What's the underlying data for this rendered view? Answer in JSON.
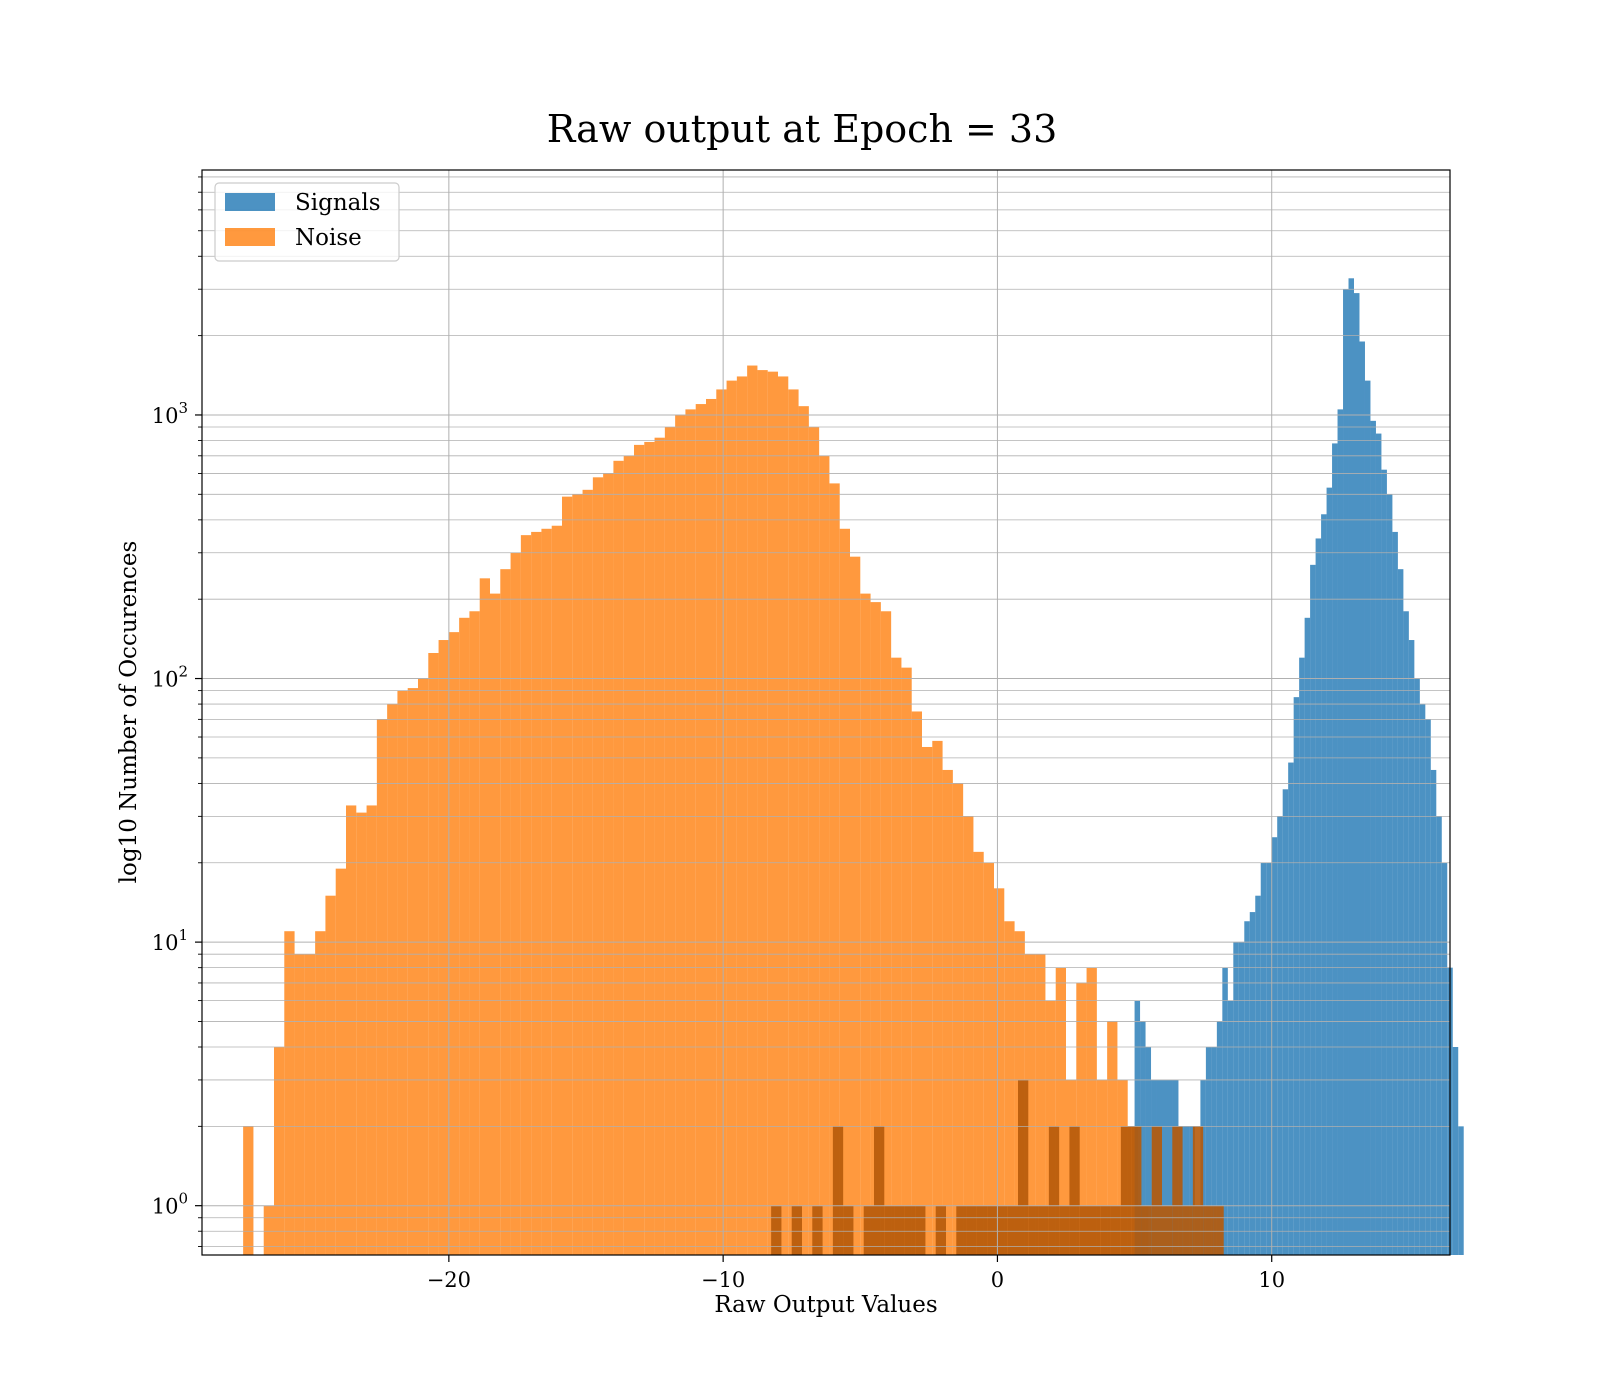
{
  "chart_data": {
    "type": "bar",
    "title": "Raw output at Epoch = 33",
    "xlabel": "Raw Output Values",
    "ylabel": "log10 Number of Occurences",
    "y_scale": "log",
    "xlim": [
      -29.0,
      16.5
    ],
    "ylim": [
      0.65,
      8500
    ],
    "grid": true,
    "legend_position": "upper-left",
    "x_ticks": [
      {
        "value": -20,
        "label": "−20"
      },
      {
        "value": -10,
        "label": "−10"
      },
      {
        "value": 0,
        "label": "0"
      },
      {
        "value": 10,
        "label": "10"
      }
    ],
    "y_ticks": [
      {
        "value": 1,
        "base": "10",
        "exp": "0"
      },
      {
        "value": 10,
        "base": "10",
        "exp": "1"
      },
      {
        "value": 100,
        "base": "10",
        "exp": "2"
      },
      {
        "value": 1000,
        "base": "10",
        "exp": "3"
      }
    ],
    "series": [
      {
        "name": "Signals",
        "color": "#1f77b4",
        "bin_start": 5.0,
        "bin_width": 0.2,
        "values": [
          6,
          5,
          4,
          3,
          3,
          3,
          3,
          3,
          2,
          2,
          2,
          1,
          3,
          4,
          4,
          5,
          8,
          6,
          10,
          10,
          12,
          13,
          15,
          20,
          20,
          25,
          30,
          38,
          48,
          85,
          120,
          170,
          270,
          340,
          420,
          530,
          780,
          1050,
          3000,
          3300,
          2900,
          1900,
          1350,
          950,
          850,
          620,
          500,
          360,
          260,
          180,
          140,
          100,
          80,
          70,
          45,
          30,
          20,
          8,
          4,
          2
        ]
      },
      {
        "name": "Noise",
        "color": "#ff7f0e",
        "bin_start": -27.5,
        "bin_width": 0.375,
        "values": [
          2,
          0,
          1,
          4,
          11,
          9,
          9,
          11,
          15,
          19,
          33,
          31,
          33,
          70,
          80,
          90,
          92,
          100,
          125,
          140,
          150,
          170,
          180,
          240,
          210,
          260,
          300,
          350,
          360,
          370,
          380,
          490,
          500,
          520,
          580,
          600,
          670,
          700,
          770,
          790,
          820,
          900,
          1000,
          1050,
          1100,
          1150,
          1250,
          1350,
          1400,
          1540,
          1480,
          1460,
          1400,
          1250,
          1080,
          900,
          700,
          550,
          370,
          290,
          210,
          195,
          180,
          120,
          110,
          75,
          55,
          58,
          45,
          40,
          30,
          22,
          20,
          16,
          12,
          11,
          9,
          9,
          6,
          8,
          3,
          7,
          8,
          3,
          5,
          3,
          2,
          1
        ]
      },
      {
        "name": "",
        "color": "#b65a0a",
        "bin_start": -8.25,
        "bin_width": 0.375,
        "values": [
          1,
          0,
          1,
          0,
          1,
          0,
          2,
          1,
          0,
          1,
          2,
          1,
          1,
          1,
          1,
          0,
          1,
          0,
          1,
          1,
          1,
          1,
          1,
          1,
          3,
          1,
          1,
          2,
          1,
          2,
          1,
          1,
          1,
          1,
          2,
          2,
          1,
          2,
          1,
          2,
          1,
          2,
          1,
          1
        ]
      }
    ]
  }
}
